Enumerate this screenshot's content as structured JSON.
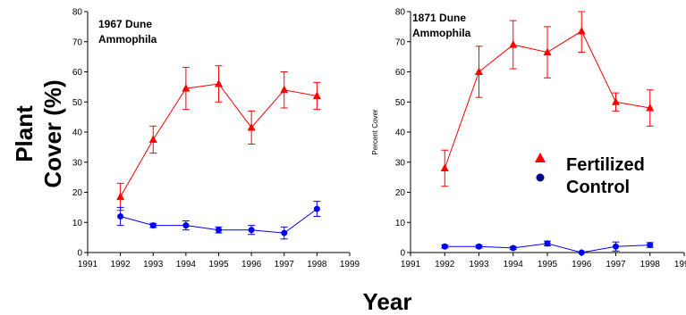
{
  "figure": {
    "ylabel_line1": "Plant",
    "ylabel_line2": "Cover (%)",
    "xlabel": "Year"
  },
  "colors": {
    "fertilized": "#ff0000",
    "control": "#0000ff",
    "axis": "#000000"
  },
  "icons": {
    "fertilized_marker": "red-triangle-icon",
    "control_marker": "blue-circle-icon"
  },
  "chart_data": [
    {
      "type": "line",
      "title_line1": "1967 Dune",
      "title_line2": "Ammophila",
      "xlabel": "",
      "ylabel": "",
      "xlim": [
        1991,
        1999
      ],
      "ylim": [
        0,
        80
      ],
      "xticks": [
        1991,
        1992,
        1993,
        1994,
        1995,
        1996,
        1997,
        1998,
        1999
      ],
      "yticks": [
        0,
        10,
        20,
        30,
        40,
        50,
        60,
        70,
        80
      ],
      "x": [
        1992,
        1993,
        1994,
        1995,
        1996,
        1997,
        1998
      ],
      "series": [
        {
          "name": "Fertilized",
          "color": "#ff0000",
          "marker": "triangle",
          "values": [
            18.5,
            37.5,
            54.5,
            56,
            41.5,
            54,
            52
          ],
          "errors": [
            4.5,
            4.5,
            7,
            6,
            5.5,
            6,
            4.5
          ]
        },
        {
          "name": "Control",
          "color": "#0000ff",
          "marker": "circle",
          "values": [
            12,
            9,
            9,
            7.5,
            7.5,
            6.5,
            14.5
          ],
          "errors": [
            3,
            0.7,
            1.5,
            1,
            1.5,
            2,
            2.5
          ]
        }
      ],
      "legend": "none",
      "grid": false
    },
    {
      "type": "line",
      "title_line1": "1871 Dune",
      "title_line2": "Ammophila",
      "xlabel": "",
      "ylabel": "Percent Cover",
      "xlim": [
        1991,
        1999
      ],
      "ylim": [
        0,
        80
      ],
      "xticks": [
        1991,
        1992,
        1993,
        1994,
        1995,
        1996,
        1997,
        1998,
        1999
      ],
      "yticks": [
        0,
        10,
        20,
        30,
        40,
        50,
        60,
        70,
        80
      ],
      "x": [
        1992,
        1993,
        1994,
        1995,
        1996,
        1997,
        1998
      ],
      "series": [
        {
          "name": "Fertilized",
          "color": "#ff0000",
          "marker": "triangle",
          "values": [
            28,
            60,
            69,
            66.5,
            73.5,
            50,
            48
          ],
          "errors": [
            6,
            8.5,
            8,
            8.5,
            7,
            3,
            6
          ]
        },
        {
          "name": "Control",
          "color": "#0000ff",
          "marker": "circle",
          "values": [
            2,
            2,
            1.5,
            3,
            0,
            2,
            2.5
          ],
          "errors": [
            0.5,
            0.5,
            0.5,
            0.8,
            0.3,
            1.5,
            0.8
          ]
        }
      ],
      "legend": "right",
      "grid": false
    }
  ]
}
